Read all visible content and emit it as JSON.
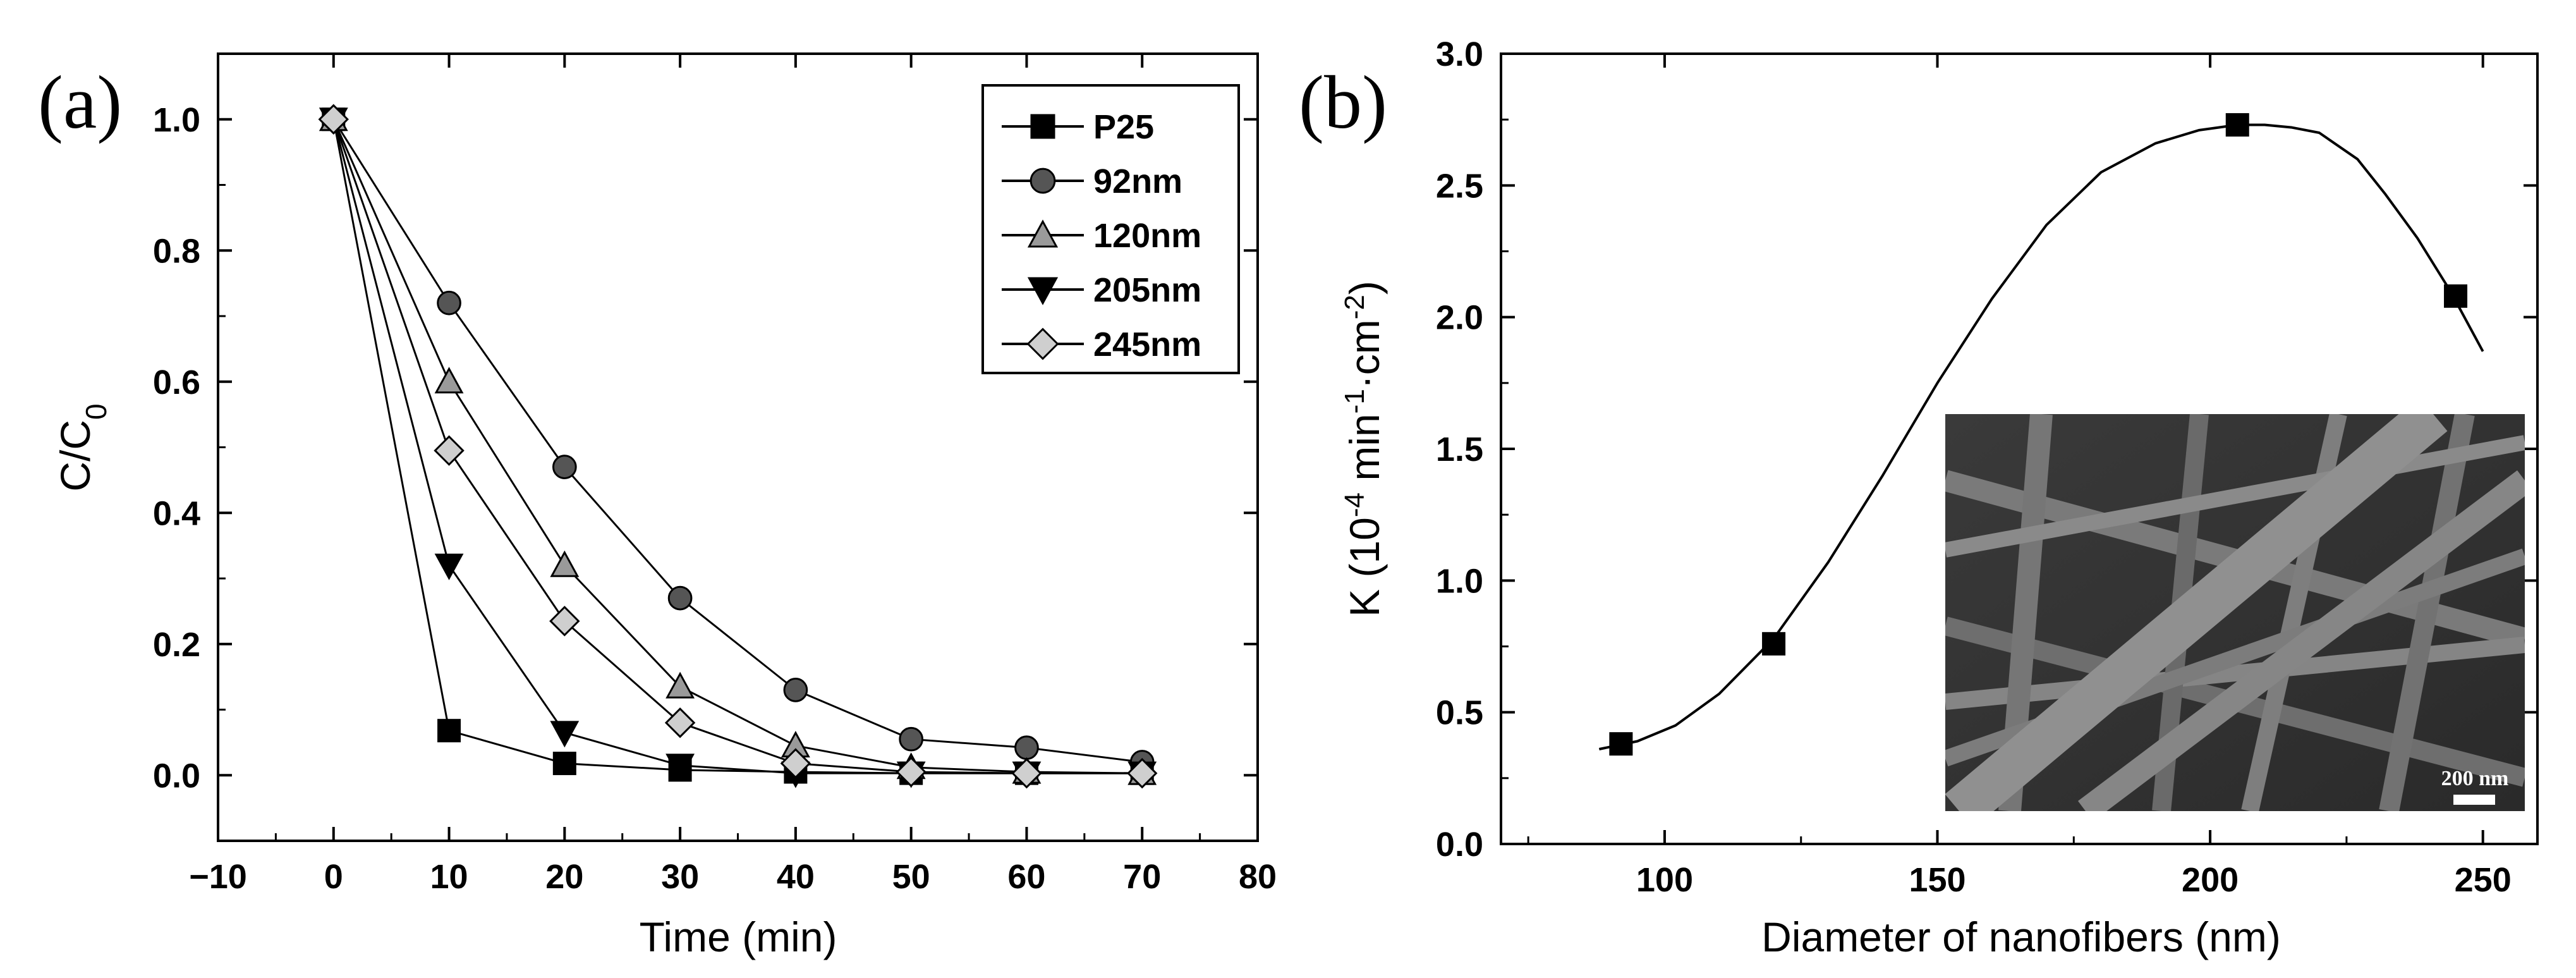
{
  "chart_data": [
    {
      "type": "line",
      "panel_label": "(a)",
      "xlabel": "Time (min)",
      "ylabel": "C/C",
      "ylabel_subscript": "0",
      "xlim": [
        -10,
        80
      ],
      "ylim": [
        -0.1,
        1.1
      ],
      "xticks": [
        -10,
        0,
        10,
        20,
        30,
        40,
        50,
        60,
        70,
        80
      ],
      "xtick_labels": [
        "−10",
        "0",
        "10",
        "20",
        "30",
        "40",
        "50",
        "60",
        "70",
        "80"
      ],
      "yticks": [
        0.0,
        0.2,
        0.4,
        0.6,
        0.8,
        1.0
      ],
      "ytick_labels": [
        "0.0",
        "0.2",
        "0.4",
        "0.6",
        "0.8",
        "1.0"
      ],
      "legend_position": "top-right",
      "x": [
        0,
        10,
        20,
        30,
        40,
        50,
        60,
        70
      ],
      "series": [
        {
          "name": "P25",
          "marker": "square",
          "values": [
            1.0,
            0.068,
            0.018,
            0.008,
            0.005,
            0.003,
            0.003,
            0.003
          ]
        },
        {
          "name": "92nm",
          "marker": "circle",
          "values": [
            1.0,
            0.72,
            0.47,
            0.27,
            0.13,
            0.055,
            0.042,
            0.02
          ]
        },
        {
          "name": "120nm",
          "marker": "triangle-up",
          "values": [
            1.0,
            0.6,
            0.32,
            0.135,
            0.045,
            0.012,
            0.005,
            0.003
          ]
        },
        {
          "name": "205nm",
          "marker": "triangle-down",
          "values": [
            1.0,
            0.32,
            0.065,
            0.015,
            0.003,
            0.003,
            0.003,
            0.003
          ]
        },
        {
          "name": "245nm",
          "marker": "diamond",
          "values": [
            1.0,
            0.495,
            0.235,
            0.08,
            0.018,
            0.005,
            0.003,
            0.003
          ]
        }
      ]
    },
    {
      "type": "line",
      "panel_label": "(b)",
      "xlabel": "Diameter of nanofibers (nm)",
      "ylabel_prefix": "K (10",
      "ylabel_exp1": "-4",
      "ylabel_mid": " min",
      "ylabel_exp2": "-1",
      "ylabel_dot": "·cm",
      "ylabel_exp3": "-2",
      "ylabel_suffix": ")",
      "xlim": [
        70,
        260
      ],
      "ylim": [
        0.0,
        3.0
      ],
      "xticks": [
        100,
        150,
        200,
        250
      ],
      "xtick_labels": [
        "100",
        "150",
        "200",
        "250"
      ],
      "yticks": [
        0.0,
        0.5,
        1.0,
        1.5,
        2.0,
        2.5,
        3.0
      ],
      "ytick_labels": [
        "0.0",
        "0.5",
        "1.0",
        "1.5",
        "2.0",
        "2.5",
        "3.0"
      ],
      "points": {
        "x": [
          92,
          120,
          205,
          245
        ],
        "y": [
          0.38,
          0.76,
          2.73,
          2.08
        ]
      },
      "fit_curve": {
        "x": [
          88,
          95,
          102,
          110,
          120,
          130,
          140,
          150,
          160,
          170,
          180,
          190,
          198,
          205,
          210,
          215,
          220,
          227,
          232,
          238,
          244,
          250
        ],
        "y": [
          0.36,
          0.39,
          0.45,
          0.57,
          0.78,
          1.07,
          1.4,
          1.75,
          2.07,
          2.35,
          2.55,
          2.66,
          2.71,
          2.73,
          2.73,
          2.72,
          2.7,
          2.6,
          2.47,
          2.3,
          2.1,
          1.87
        ]
      },
      "inset": {
        "description_label": "SEM",
        "scale_bar_label": "200 nm"
      }
    }
  ]
}
